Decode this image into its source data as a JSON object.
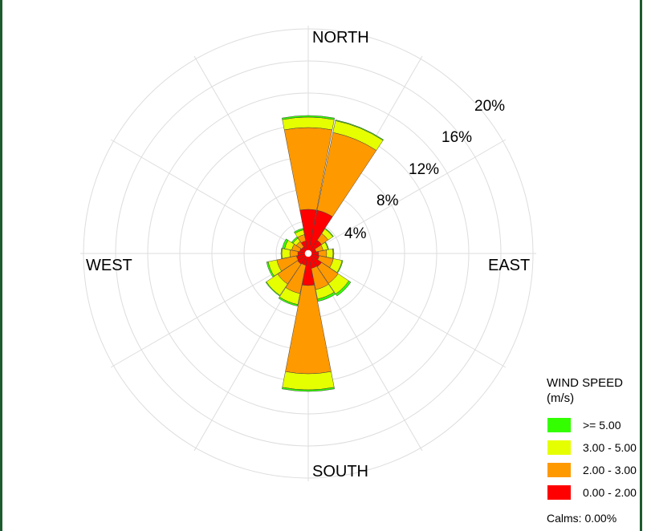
{
  "chart_data": {
    "type": "wind-rose",
    "directions_labels": {
      "north": "NORTH",
      "east": "EAST",
      "south": "SOUTH",
      "west": "WEST"
    },
    "radial_ticks": [
      4,
      8,
      12,
      16,
      20
    ],
    "radial_tick_labels": [
      "4%",
      "8%",
      "12%",
      "16%",
      "20%"
    ],
    "radial_max": 20,
    "sector_count": 16,
    "sector_directions": [
      "N",
      "NNE",
      "NE",
      "ENE",
      "E",
      "ESE",
      "SE",
      "SSE",
      "S",
      "SSW",
      "SW",
      "WSW",
      "W",
      "WNW",
      "NW",
      "NNW"
    ],
    "bins": [
      {
        "label": "0.00 - 2.00",
        "color": "#ff0000"
      },
      {
        "label": "2.00 - 3.00",
        "color": "#ff9900"
      },
      {
        "label": "3.00 - 5.00",
        "color": "#e6ff00"
      },
      {
        "label": ">= 5.00",
        "color": "#33ff00"
      }
    ],
    "cumulative_percent": [
      [
        5.5,
        15.7,
        17.0,
        17.2
      ],
      [
        5.5,
        15.4,
        16.9,
        17.0
      ],
      [
        2.0,
        3.0,
        3.7,
        3.8
      ],
      [
        1.0,
        1.9,
        2.5,
        2.6
      ],
      [
        1.3,
        2.3,
        3.1,
        3.2
      ],
      [
        1.4,
        3.2,
        4.3,
        4.4
      ],
      [
        2.0,
        4.5,
        6.1,
        6.4
      ],
      [
        1.9,
        4.6,
        5.8,
        6.1
      ],
      [
        4.0,
        15.0,
        17.0,
        17.2
      ],
      [
        1.5,
        5.1,
        6.5,
        6.7
      ],
      [
        1.6,
        4.6,
        6.3,
        6.4
      ],
      [
        1.5,
        4.0,
        5.1,
        5.3
      ],
      [
        1.3,
        2.3,
        3.3,
        3.4
      ],
      [
        1.1,
        2.1,
        3.0,
        3.3
      ],
      [
        1.0,
        1.8,
        2.3,
        2.5
      ],
      [
        1.6,
        2.4,
        3.0,
        3.2
      ]
    ]
  },
  "legend": {
    "title_line1": "WIND SPEED",
    "title_line2": "(m/s)",
    "items": [
      {
        "label": ">= 5.00",
        "color": "#33ff00"
      },
      {
        "label": "3.00 - 5.00",
        "color": "#e6ff00"
      },
      {
        "label": "2.00 - 3.00",
        "color": "#ff9900"
      },
      {
        "label": "0.00 - 2.00",
        "color": "#ff0000"
      }
    ],
    "calms": "Calms: 0.00%"
  }
}
